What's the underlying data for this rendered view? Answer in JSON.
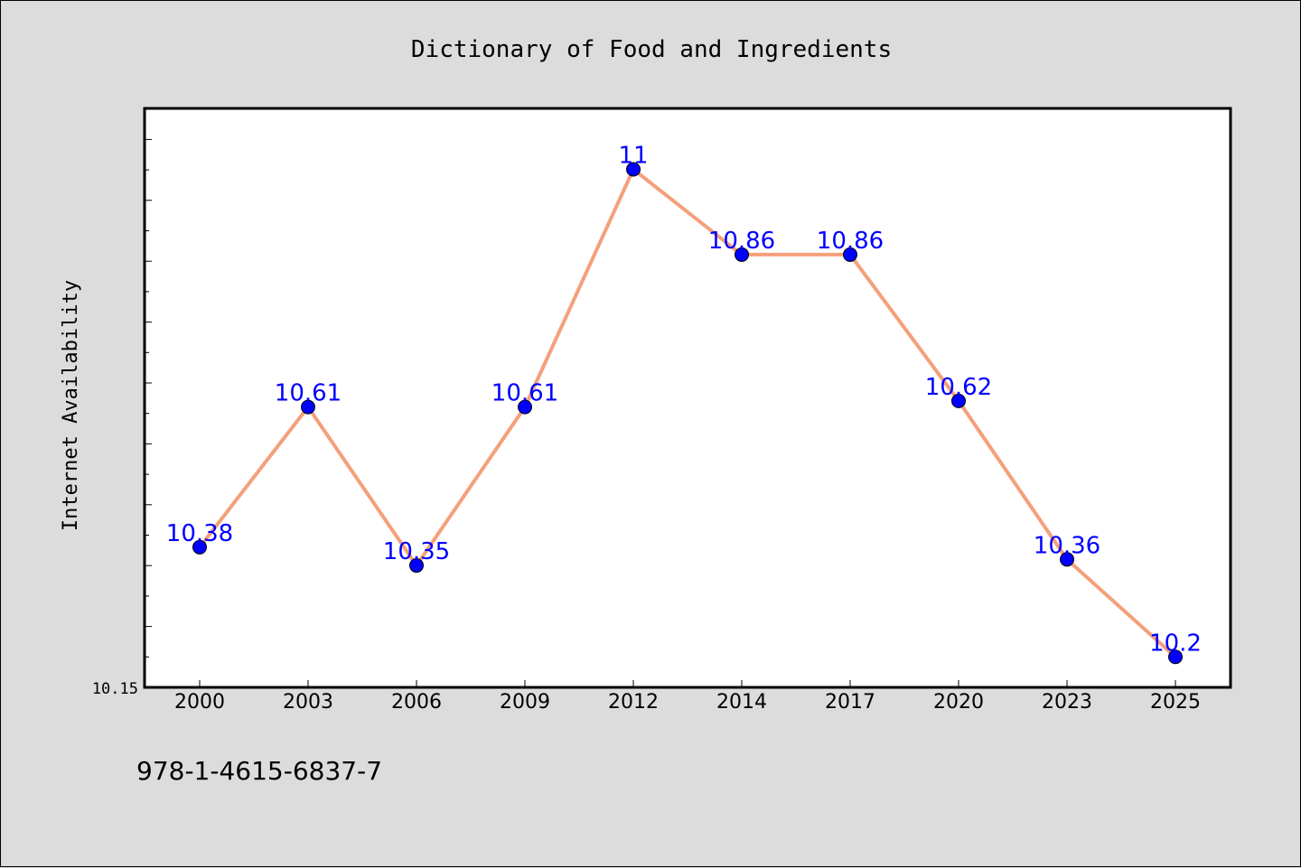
{
  "page": {
    "footer_text": "978-1-4615-6837-7"
  },
  "chart_data": {
    "type": "line",
    "title": "Dictionary of Food and Ingredients",
    "xlabel": "",
    "ylabel": "Internet Availability",
    "categories": [
      "2000",
      "2003",
      "2006",
      "2009",
      "2012",
      "2014",
      "2017",
      "2020",
      "2023",
      "2025"
    ],
    "series": [
      {
        "values": [
          10.38,
          10.61,
          10.35,
          10.61,
          11,
          10.86,
          10.86,
          10.62,
          10.36,
          10.2
        ],
        "labels": [
          "10.38",
          "10.61",
          "10.35",
          "10.61",
          "11",
          "10.86",
          "10.86",
          "10.62",
          "10.36",
          "10.2"
        ],
        "line_color": "#f4a07a",
        "marker_color": "#0000ff"
      }
    ],
    "ylim": [
      10.15,
      11.1
    ],
    "y_tick_labels": [
      "10.15"
    ],
    "grid": false,
    "legend": "none",
    "plot_background": "#ffffff",
    "page_background": "#dcdcdc"
  }
}
